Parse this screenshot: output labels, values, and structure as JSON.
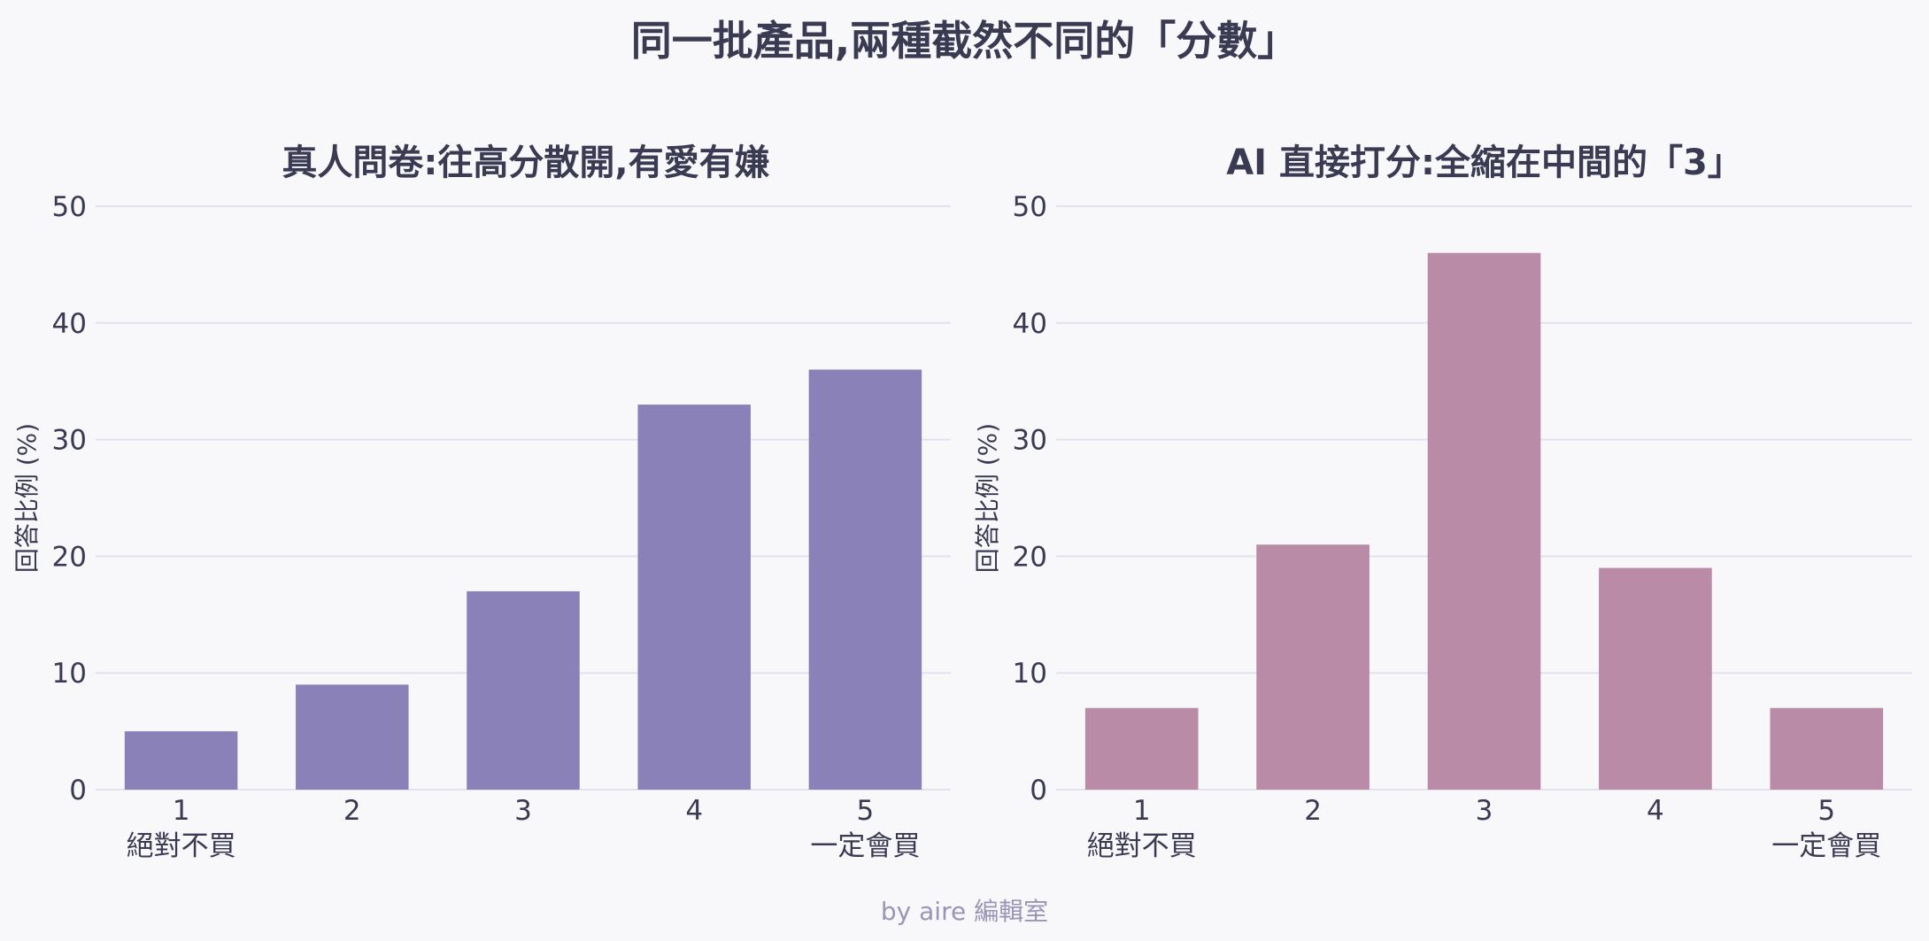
{
  "title": "同一批產品,兩種截然不同的「分數」",
  "credit": "by aire 編輯室",
  "chart_data": [
    {
      "type": "bar",
      "title": "真人問卷:往高分散開,有愛有嫌",
      "ylabel": "回答比例 (%)",
      "ylim": [
        0,
        50
      ],
      "yticks": [
        0,
        10,
        20,
        30,
        40,
        50
      ],
      "categories": [
        "1",
        "2",
        "3",
        "4",
        "5"
      ],
      "category_notes": [
        "絕對不買",
        "",
        "",
        "",
        "一定會買"
      ],
      "values": [
        5,
        9,
        17,
        33,
        36
      ],
      "color": "#8a81b8",
      "grid": true
    },
    {
      "type": "bar",
      "title": "AI 直接打分:全縮在中間的「3」",
      "ylabel": "回答比例 (%)",
      "ylim": [
        0,
        50
      ],
      "yticks": [
        0,
        10,
        20,
        30,
        40,
        50
      ],
      "categories": [
        "1",
        "2",
        "3",
        "4",
        "5"
      ],
      "category_notes": [
        "絕對不買",
        "",
        "",
        "",
        "一定會買"
      ],
      "values": [
        7,
        21,
        46,
        19,
        7
      ],
      "color": "#b98ba6",
      "grid": true
    }
  ]
}
